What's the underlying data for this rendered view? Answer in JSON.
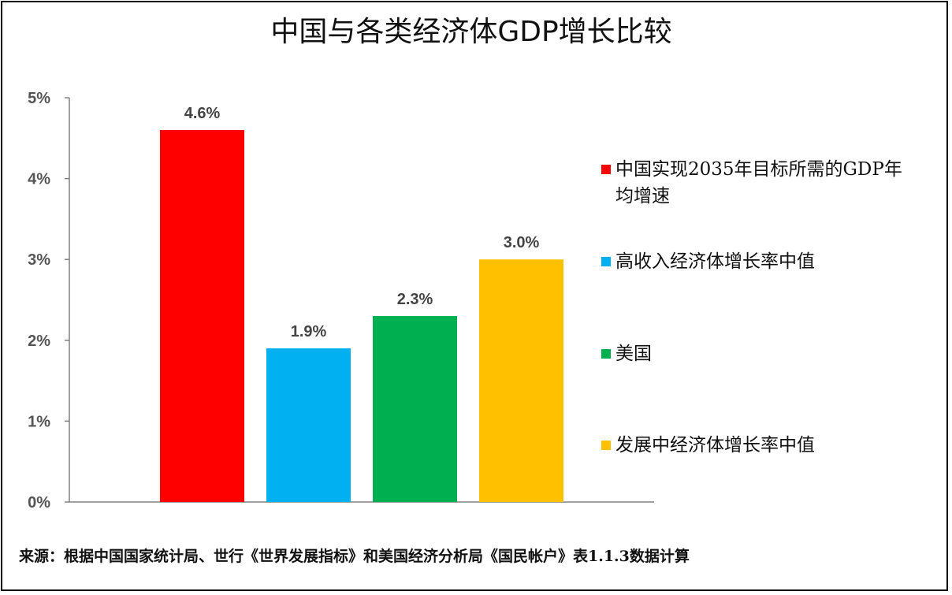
{
  "chart_data": {
    "type": "bar",
    "title": "中国与各类经济体GDP增长比较",
    "categories": [
      "中国实现2035年目标所需的GDP年均增速",
      "高收入经济体增长率中值",
      "美国",
      "发展中经济体增长率中值"
    ],
    "values": [
      4.6,
      1.9,
      2.3,
      3.0
    ],
    "value_labels": [
      "4.6%",
      "1.9%",
      "2.3%",
      "3.0%"
    ],
    "colors": [
      "#FF0000",
      "#00B0F0",
      "#00B050",
      "#FFC000"
    ],
    "ylim": [
      0,
      5
    ],
    "yticks": [
      "0%",
      "1%",
      "2%",
      "3%",
      "4%",
      "5%"
    ],
    "legend": [
      {
        "lines": [
          "中国实现2035年目标所需的GDP年",
          "均增速"
        ],
        "color": "#FF0000"
      },
      {
        "lines": [
          "高收入经济体增长率中值"
        ],
        "color": "#00B0F0"
      },
      {
        "lines": [
          "美国"
        ],
        "color": "#00B050"
      },
      {
        "lines": [
          " 发展中经济体增长率中值"
        ],
        "color": "#FFC000"
      }
    ],
    "legend_position": "right",
    "grid": false,
    "source": "来源：根据中国国家统计局、世行《世界发展指标》和美国经济分析局《国民帐户》表1.1.3数据计算"
  }
}
